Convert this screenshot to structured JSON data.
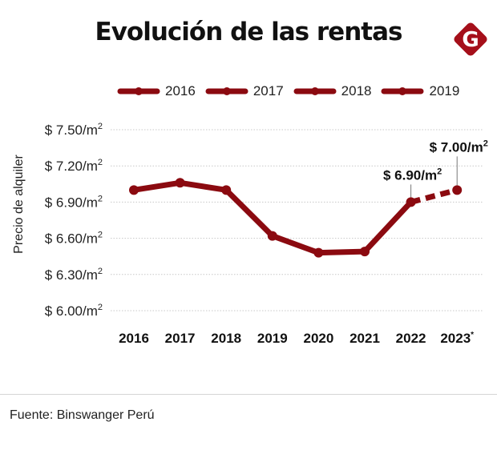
{
  "title": "Evolución de las rentas",
  "logo": {
    "icon": "g-diamond-logo-icon",
    "letter": "G",
    "color": "#a50f1a"
  },
  "colors": {
    "line": "#8b0a10",
    "grid": "#c8c8c8",
    "text": "#111111",
    "connector": "#777777"
  },
  "legend": [
    {
      "label": "2016"
    },
    {
      "label": "2017"
    },
    {
      "label": "2018"
    },
    {
      "label": "2019"
    }
  ],
  "source": "Fuente: Binswanger Perú",
  "chart_data": {
    "type": "line",
    "title": "Evolución de las rentas",
    "xlabel": "",
    "ylabel": "Precio de alquiler",
    "categories": [
      "2016",
      "2017",
      "2018",
      "2019",
      "2020",
      "2021",
      "2022",
      "2023*"
    ],
    "series": [
      {
        "name": "Precio de alquiler (US$/m²)",
        "values": [
          7.0,
          7.06,
          7.0,
          6.62,
          6.48,
          6.49,
          6.9,
          7.0
        ],
        "projected_from_index": 6
      }
    ],
    "ylim": [
      6.0,
      7.5
    ],
    "yticks": [
      6.0,
      6.3,
      6.6,
      6.9,
      7.2,
      7.5
    ],
    "ytick_labels": [
      "$ 6.00/m²",
      "$ 6.30/m²",
      "$ 6.60/m²",
      "$ 6.90/m²",
      "$ 7.20/m²",
      "$ 7.50/m²"
    ],
    "grid": true,
    "legend_position": "top",
    "legend_entries": [
      "2016",
      "2017",
      "2018",
      "2019"
    ],
    "annotations": [
      {
        "category": "2022",
        "text": "$ 6.90/m²"
      },
      {
        "category": "2023*",
        "text": "$ 7.00/m²"
      }
    ]
  }
}
